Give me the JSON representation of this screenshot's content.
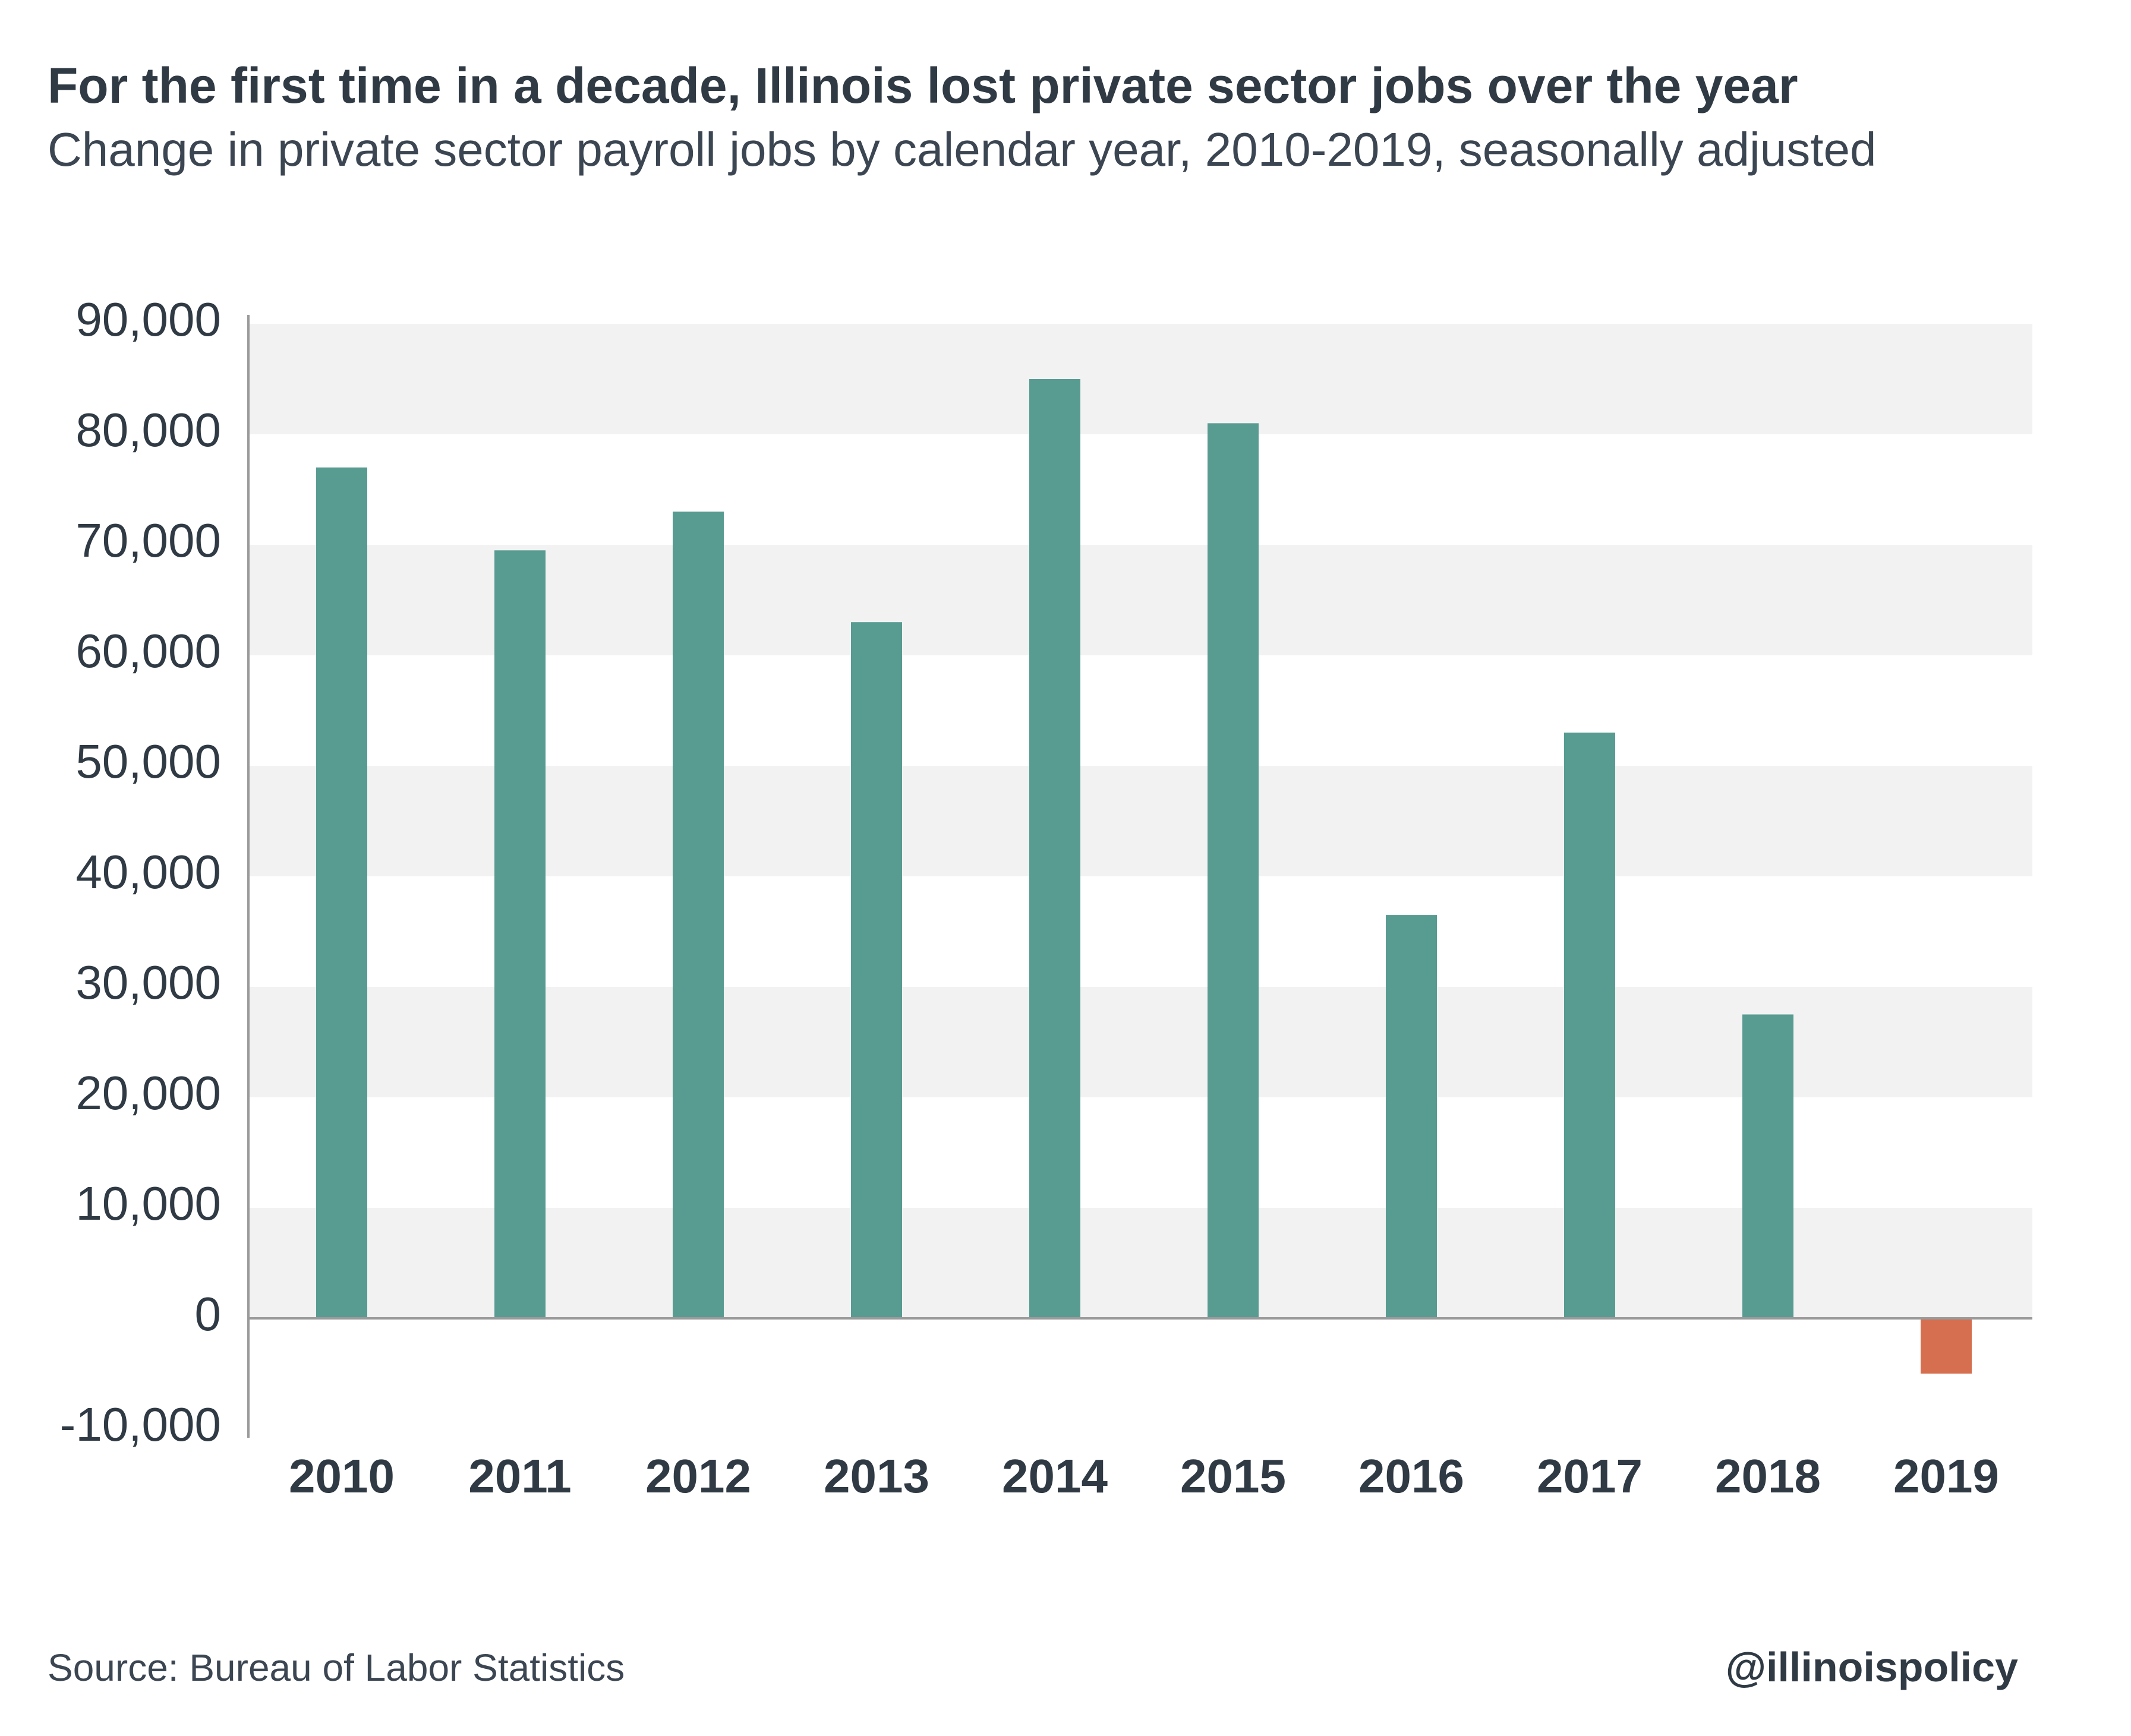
{
  "header": {
    "title": "For the first time in a decade, Illinois lost private sector jobs over the year",
    "subtitle": "Change in private sector payroll jobs by calendar year, 2010-2019, seasonally adjusted"
  },
  "footer": {
    "source": "Source: Bureau of Labor Statistics",
    "handle": "@illinoispolicy"
  },
  "chart_data": {
    "type": "bar",
    "title": "For the first time in a decade, Illinois lost private sector jobs over the year",
    "subtitle": "Change in private sector payroll jobs by calendar year, 2010-2019, seasonally adjusted",
    "xlabel": "",
    "ylabel": "",
    "categories": [
      "2010",
      "2011",
      "2012",
      "2013",
      "2014",
      "2015",
      "2016",
      "2017",
      "2018",
      "2019"
    ],
    "values": [
      77000,
      69500,
      73000,
      63000,
      85000,
      81000,
      36500,
      53000,
      27500,
      -5000
    ],
    "ylim": [
      -10000,
      90000
    ],
    "yticks": [
      90000,
      80000,
      70000,
      60000,
      50000,
      40000,
      30000,
      20000,
      10000,
      0,
      -10000
    ],
    "ytick_labels": [
      "90,000",
      "80,000",
      "70,000",
      "60,000",
      "50,000",
      "40,000",
      "30,000",
      "20,000",
      "10,000",
      "0",
      "-10,000"
    ],
    "grid": "alternating horizontal bands",
    "legend": "none",
    "colors": {
      "positive": "#579b91",
      "negative": "#d56f4f",
      "band": "#f2f2f2",
      "axis": "#9a9a9a",
      "text": "#2f3a44"
    }
  }
}
